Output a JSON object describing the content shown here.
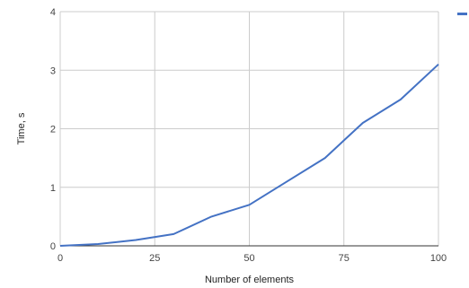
{
  "chart_data": {
    "type": "line",
    "title": "",
    "xlabel": "Number of elements",
    "ylabel": "Time, s",
    "xlim": [
      0,
      100
    ],
    "ylim": [
      0,
      4
    ],
    "x_ticks": [
      0,
      25,
      50,
      75,
      100
    ],
    "y_ticks": [
      0,
      1,
      2,
      3,
      4
    ],
    "grid": true,
    "legend_position": "top-right",
    "series": [
      {
        "color": "#4472c4",
        "points": [
          {
            "x": 0,
            "y": 0
          },
          {
            "x": 10,
            "y": 0.03
          },
          {
            "x": 20,
            "y": 0.1
          },
          {
            "x": 30,
            "y": 0.2
          },
          {
            "x": 40,
            "y": 0.5
          },
          {
            "x": 50,
            "y": 0.7
          },
          {
            "x": 60,
            "y": 1.1
          },
          {
            "x": 70,
            "y": 1.5
          },
          {
            "x": 80,
            "y": 2.1
          },
          {
            "x": 90,
            "y": 2.5
          },
          {
            "x": 100,
            "y": 3.1
          }
        ]
      }
    ]
  }
}
